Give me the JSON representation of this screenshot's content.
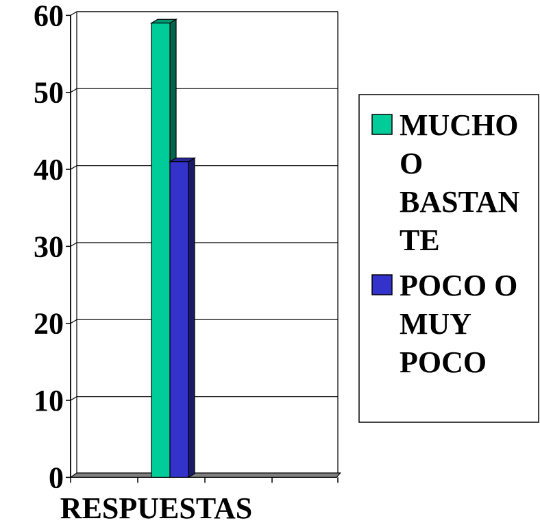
{
  "chart_data": {
    "type": "bar",
    "categories": [
      "RESPUESTAS"
    ],
    "series": [
      {
        "name": "MUCHO O BASTANTE",
        "values": [
          59
        ],
        "color": "#00cc99",
        "legend_lines": [
          "MUCHO",
          "O",
          "BASTAN",
          "TE"
        ]
      },
      {
        "name": "POCO O MUY POCO",
        "values": [
          41
        ],
        "color": "#3333cc",
        "legend_lines": [
          "POCO O",
          "MUY",
          "POCO"
        ]
      }
    ],
    "xlabel": "RESPUESTAS",
    "ylabel": "",
    "ylim": [
      0,
      60
    ],
    "yticks": [
      "0",
      "10",
      "20",
      "30",
      "40",
      "50",
      "60"
    ],
    "grid": true,
    "legend": "right",
    "style": "3d"
  }
}
